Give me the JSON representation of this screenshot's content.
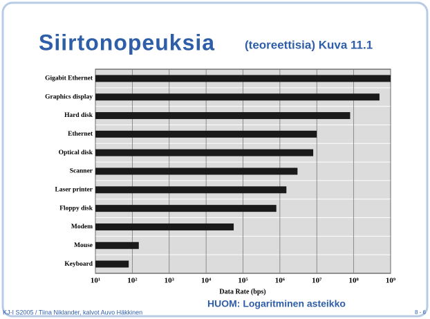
{
  "chart_data": {
    "type": "barh",
    "title": "Siirtonopeuksia",
    "subtitle": "(teoreettisia) Kuva 11.1",
    "xlabel": "Data Rate (bps)",
    "note": "HUOM: Logaritminen asteikko",
    "footer": "KJ-I S2005 / Tiina Niklander, kalvot Auvo Häkkinen",
    "page": "8 - 6",
    "categories": [
      "Gigabit Ethernet",
      "Graphics display",
      "Hard disk",
      "Ethernet",
      "Optical disk",
      "Scanner",
      "Laser printer",
      "Floppy disk",
      "Modem",
      "Mouse",
      "Keyboard"
    ],
    "values": [
      1000000000,
      500000000,
      80000000,
      10000000,
      8000000,
      3000000,
      1500000,
      800000,
      56000,
      150,
      80
    ],
    "color": "#1a1a1a",
    "log": true,
    "grid": true,
    "xlim": [
      10,
      1000000000
    ],
    "xticks": [
      {
        "value": 10,
        "label": "10¹"
      },
      {
        "value": 100,
        "label": "10²"
      },
      {
        "value": 1000,
        "label": "10³"
      },
      {
        "value": 10000,
        "label": "10⁴"
      },
      {
        "value": 100000,
        "label": "10⁵"
      },
      {
        "value": 1000000,
        "label": "10⁶"
      },
      {
        "value": 10000000,
        "label": "10⁷"
      },
      {
        "value": 100000000,
        "label": "10⁸"
      },
      {
        "value": 1000000000,
        "label": "10⁹"
      }
    ]
  }
}
